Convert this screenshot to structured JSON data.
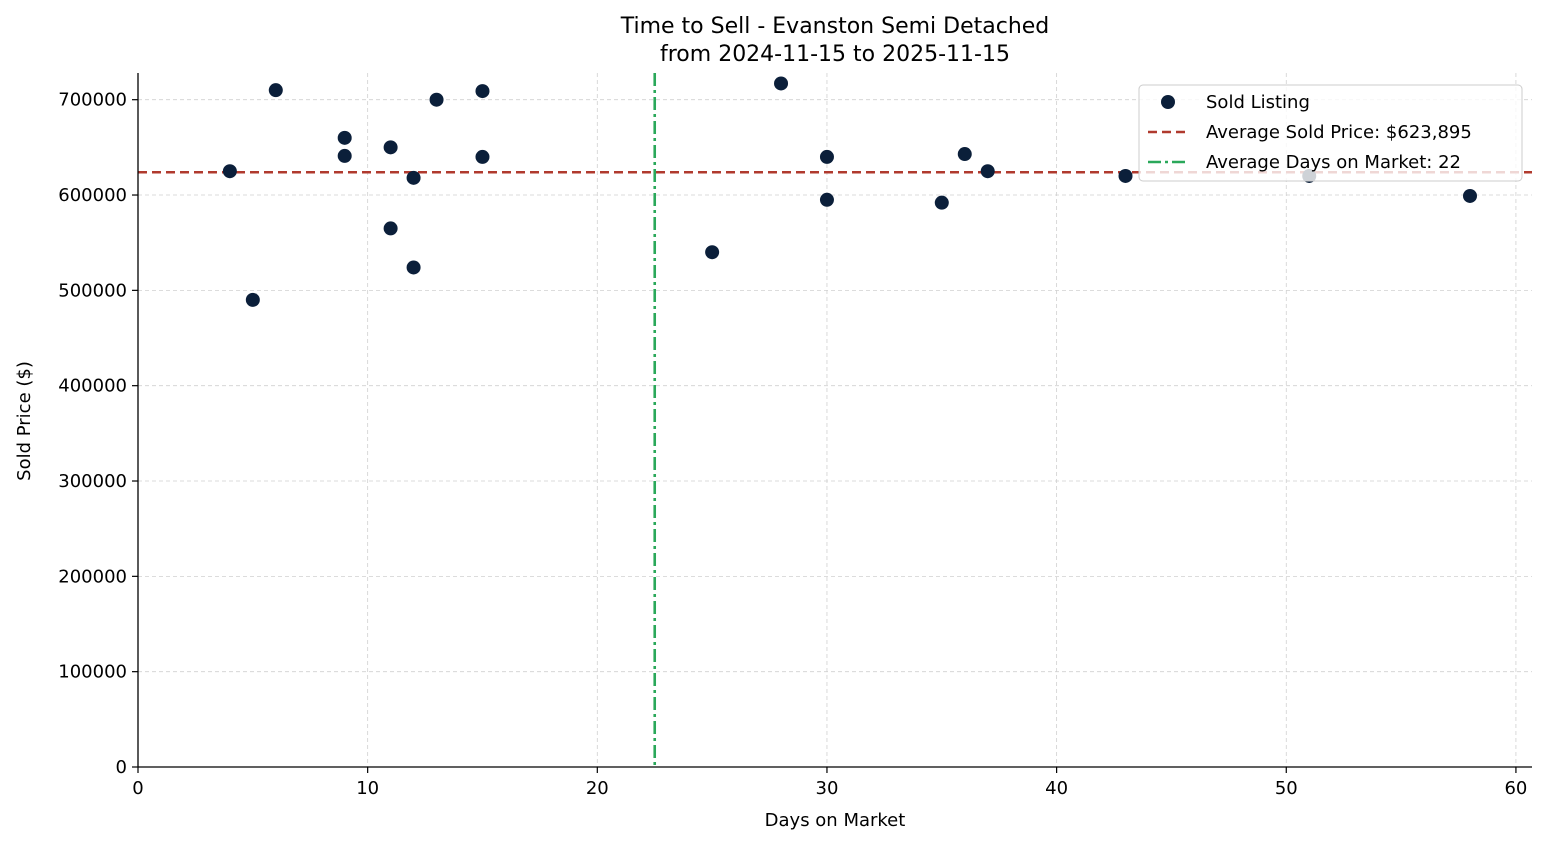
{
  "chart_data": {
    "type": "scatter",
    "title_line1": "Time to Sell - Evanston Semi Detached",
    "title_line2": "from 2024-11-15 to 2025-11-15",
    "xlabel": "Days on Market",
    "ylabel": "Sold Price ($)",
    "xlim": [
      0,
      60.7
    ],
    "ylim": [
      0,
      728000
    ],
    "xticks": [
      0,
      10,
      20,
      30,
      40,
      50,
      60
    ],
    "yticks": [
      0,
      100000,
      200000,
      300000,
      400000,
      500000,
      600000,
      700000
    ],
    "grid": true,
    "legend_position": "top-right",
    "series": [
      {
        "name": "Sold Listing",
        "color": "#0b1f3a",
        "points": [
          {
            "x": 4,
            "y": 625000
          },
          {
            "x": 5,
            "y": 490000
          },
          {
            "x": 6,
            "y": 710000
          },
          {
            "x": 9,
            "y": 660000
          },
          {
            "x": 9,
            "y": 641000
          },
          {
            "x": 11,
            "y": 650000
          },
          {
            "x": 11,
            "y": 565000
          },
          {
            "x": 12,
            "y": 618000
          },
          {
            "x": 12,
            "y": 524000
          },
          {
            "x": 13,
            "y": 700000
          },
          {
            "x": 15,
            "y": 709000
          },
          {
            "x": 15,
            "y": 640000
          },
          {
            "x": 25,
            "y": 540000
          },
          {
            "x": 28,
            "y": 717000
          },
          {
            "x": 30,
            "y": 640000
          },
          {
            "x": 30,
            "y": 595000
          },
          {
            "x": 35,
            "y": 592000
          },
          {
            "x": 36,
            "y": 643000
          },
          {
            "x": 37,
            "y": 625000
          },
          {
            "x": 43,
            "y": 620000
          },
          {
            "x": 51,
            "y": 620000
          },
          {
            "x": 58,
            "y": 599000
          }
        ]
      }
    ],
    "reference_lines": [
      {
        "orientation": "horizontal",
        "value": 623895,
        "label": "Average Sold Price: $623,895",
        "color": "#b03a2e",
        "style": "dashed"
      },
      {
        "orientation": "vertical",
        "value": 22.5,
        "label": "Average Days on Market: 22",
        "color": "#2aa85a",
        "style": "dashdot"
      }
    ]
  }
}
